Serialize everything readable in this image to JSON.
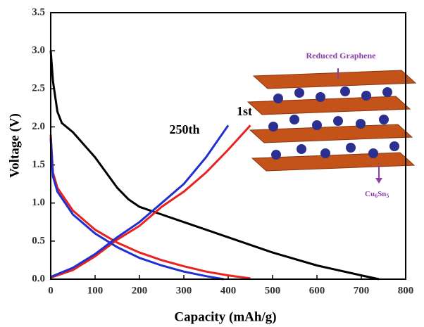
{
  "chart_data": {
    "type": "line",
    "x_label": "Capacity (mAh/g)",
    "y_label": "Voltage  (V)",
    "xlim": [
      0,
      800
    ],
    "xticks": [
      0,
      100,
      200,
      300,
      400,
      500,
      600,
      700,
      800
    ],
    "ylim": [
      0,
      3.5
    ],
    "yticks": [
      {
        "value": 0,
        "label": "0.0"
      },
      {
        "value": 0.5,
        "label": "0.5"
      },
      {
        "value": 1,
        "label": "1.0"
      },
      {
        "value": 1.5,
        "label": "1.5"
      },
      {
        "value": 2,
        "label": "2.0"
      },
      {
        "value": 2.5,
        "label": "2.5"
      },
      {
        "value": 3,
        "label": "3.0"
      },
      {
        "value": 3.5,
        "label": "3.5"
      }
    ],
    "series": [
      {
        "color": "#000000",
        "x": [
          0,
          5,
          15,
          25,
          50,
          100,
          150,
          175,
          200,
          250,
          300,
          400,
          500,
          600,
          700,
          740
        ],
        "values": [
          3.0,
          2.6,
          2.2,
          2.05,
          1.93,
          1.6,
          1.2,
          1.05,
          0.95,
          0.85,
          0.75,
          0.55,
          0.35,
          0.18,
          0.05,
          0.0
        ]
      },
      {
        "color": "#e8231f",
        "x": [
          0,
          5,
          15,
          50,
          100,
          150,
          200,
          250,
          300,
          350,
          400,
          450
        ],
        "values": [
          1.9,
          1.4,
          1.2,
          0.9,
          0.65,
          0.48,
          0.35,
          0.25,
          0.17,
          0.1,
          0.05,
          0.01
        ]
      },
      {
        "color": "#e8231f",
        "x": [
          0,
          50,
          100,
          150,
          200,
          250,
          300,
          350,
          400,
          450
        ],
        "values": [
          0.02,
          0.12,
          0.3,
          0.52,
          0.7,
          0.95,
          1.15,
          1.4,
          1.7,
          2.02
        ]
      },
      {
        "color": "#1f2fd0",
        "x": [
          0,
          5,
          15,
          50,
          100,
          150,
          200,
          250,
          300,
          350,
          390
        ],
        "values": [
          1.85,
          1.35,
          1.15,
          0.85,
          0.6,
          0.42,
          0.28,
          0.18,
          0.1,
          0.04,
          0.0
        ]
      },
      {
        "color": "#1f2fd0",
        "x": [
          0,
          50,
          100,
          150,
          200,
          250,
          300,
          350,
          400
        ],
        "values": [
          0.03,
          0.15,
          0.33,
          0.55,
          0.75,
          1.0,
          1.25,
          1.6,
          2.02
        ]
      }
    ],
    "annotations": [
      "250th",
      "1st"
    ],
    "inset": {
      "top_label": "Reduced Graphene",
      "bottom_label": [
        "Cu",
        "6",
        "Sn",
        "5"
      ]
    }
  }
}
